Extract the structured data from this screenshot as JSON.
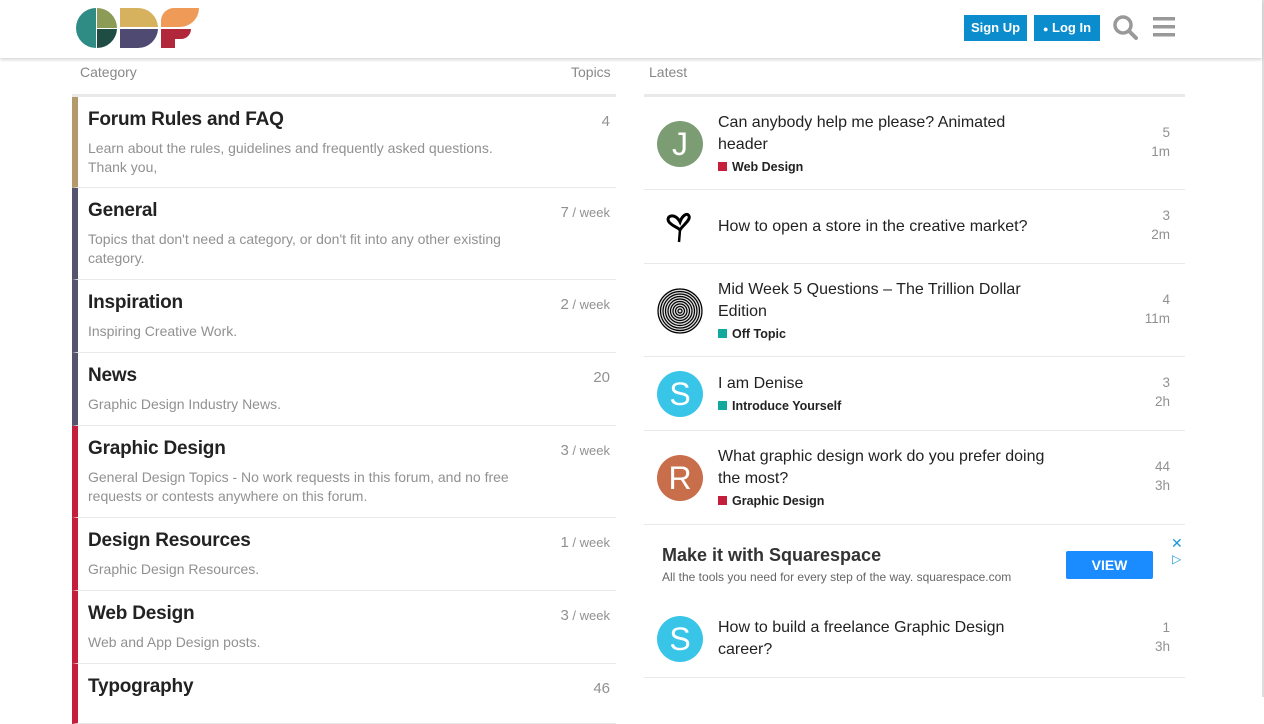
{
  "header": {
    "logo_text": "GDF",
    "signup": "Sign Up",
    "login": "Log In"
  },
  "columns": {
    "category": "Category",
    "topics": "Topics",
    "latest": "Latest"
  },
  "categories": [
    {
      "name": "Forum Rules and FAQ",
      "desc": "Learn about the rules, guidelines and frequently asked questions. Thank you,",
      "count": "4",
      "unit": "",
      "color": "#b4996b"
    },
    {
      "name": "General",
      "desc": "Topics that don't need a category, or don't fit into any other existing category.",
      "count": "7",
      "unit": " / week",
      "color": "#54546f"
    },
    {
      "name": "Inspiration",
      "desc": "Inspiring Creative Work.",
      "count": "2",
      "unit": " / week",
      "color": "#54546f"
    },
    {
      "name": "News",
      "desc": "Graphic Design Industry News.",
      "count": "20",
      "unit": "",
      "color": "#54546f"
    },
    {
      "name": "Graphic Design",
      "desc": "General Design Topics - No work requests in this forum, and no free requests or contests anywhere on this forum.",
      "count": "3",
      "unit": " / week",
      "color": "#c41e3a"
    },
    {
      "name": "Design Resources",
      "desc": "Graphic Design Resources.",
      "count": "1",
      "unit": " / week",
      "color": "#c41e3a"
    },
    {
      "name": "Web Design",
      "desc": "Web and App Design posts.",
      "count": "3",
      "unit": " / week",
      "color": "#c41e3a"
    },
    {
      "name": "Typography",
      "desc": "",
      "count": "46",
      "unit": "",
      "color": "#c41e3a"
    }
  ],
  "topics": [
    {
      "avatar": "J",
      "avatar_color": "#7c9c73",
      "title": "Can anybody help me please? Animated header",
      "tag": "Web Design",
      "tag_color": "#c41e3a",
      "replies": "5",
      "age": "1m"
    },
    {
      "avatar": "",
      "avatar_icon": "heart-drip-icon",
      "title": "How to open a store in the creative market?",
      "tag": "",
      "replies": "3",
      "age": "2m"
    },
    {
      "avatar": "",
      "avatar_icon": "spiral-icon",
      "title": "Mid Week 5 Questions – The Trillion Dollar Edition",
      "tag": "Off Topic",
      "tag_color": "#12a89d",
      "replies": "4",
      "age": "11m"
    },
    {
      "avatar": "S",
      "avatar_color": "#38c5e8",
      "title": "I am Denise",
      "tag": "Introduce Yourself",
      "tag_color": "#12a89d",
      "replies": "3",
      "age": "2h"
    },
    {
      "avatar": "R",
      "avatar_color": "#c96e4a",
      "title": "What graphic design work do you prefer doing the most?",
      "tag": "Graphic Design",
      "tag_color": "#c41e3a",
      "replies": "44",
      "age": "3h"
    },
    {
      "avatar": "S",
      "avatar_color": "#38c5e8",
      "title": "How to build a freelance Graphic Design career?",
      "tag": "",
      "replies": "1",
      "age": "3h"
    }
  ],
  "ad": {
    "title": "Make it with Squarespace",
    "text": "All the tools you need for every step of the way. squarespace.com",
    "button": "VIEW"
  }
}
